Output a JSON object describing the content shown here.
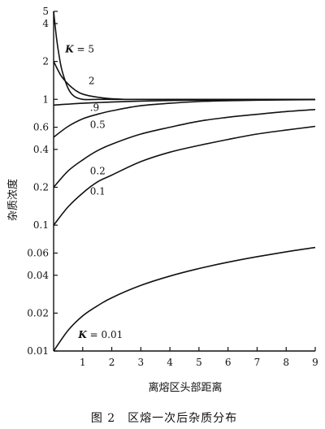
{
  "chart_data": {
    "type": "line",
    "title": "",
    "xlabel": "离熔区头部距离",
    "ylabel": "杂质浓度",
    "caption": "图 2　区熔一次后杂质分布",
    "x_scale": "linear",
    "y_scale": "log",
    "xlim": [
      0,
      9
    ],
    "ylim": [
      0.01,
      5
    ],
    "x_ticks": [
      1,
      2,
      3,
      4,
      5,
      6,
      7,
      8,
      9
    ],
    "y_ticks": [
      0.01,
      0.02,
      0.04,
      0.06,
      0.1,
      0.2,
      0.4,
      0.6,
      1,
      2,
      4,
      5
    ],
    "y_tick_labels": [
      "0.01",
      "0.02",
      "0.04",
      "0.06",
      "0.1",
      "0.2",
      "0.4",
      "0.6",
      "1",
      "2",
      "4",
      "5"
    ],
    "grid": false,
    "series": [
      {
        "name": "K = 5",
        "x": [
          0,
          0.1,
          0.2,
          0.3,
          0.5,
          0.7,
          1.0,
          1.5,
          2.0,
          3.0,
          4.0,
          6.0,
          9.0
        ],
        "values": [
          5,
          3.05,
          2.14,
          1.66,
          1.22,
          1.06,
          1.0,
          1.0,
          1.0,
          1.0,
          1.0,
          1.0,
          1.0
        ]
      },
      {
        "name": "2",
        "x": [
          0,
          0.25,
          0.5,
          0.75,
          1.0,
          1.5,
          2.0,
          2.5,
          3.0,
          4.0,
          6.0,
          9.0
        ],
        "values": [
          2,
          1.55,
          1.32,
          1.18,
          1.1,
          1.04,
          1.01,
          1.0,
          1.0,
          1.0,
          1.0,
          1.0
        ]
      },
      {
        "name": "0.9",
        "x": [
          0,
          0.5,
          1.0,
          1.5,
          2.0,
          3.0,
          4.0,
          5.0,
          6.0,
          7.0,
          8.0,
          9.0
        ],
        "values": [
          0.9,
          0.916,
          0.93,
          0.942,
          0.952,
          0.967,
          0.978,
          0.985,
          0.99,
          0.993,
          0.995,
          0.997
        ]
      },
      {
        "name": "0.5",
        "x": [
          0,
          0.5,
          1.0,
          1.5,
          2.0,
          3.0,
          4.0,
          5.0,
          6.0,
          7.0,
          8.0,
          9.0
        ],
        "values": [
          0.5,
          0.61,
          0.7,
          0.76,
          0.81,
          0.89,
          0.93,
          0.96,
          0.975,
          0.985,
          0.99,
          0.994
        ]
      },
      {
        "name": "0.2",
        "x": [
          0,
          0.5,
          1.0,
          1.5,
          2.0,
          3.0,
          4.0,
          5.0,
          6.0,
          7.0,
          8.0,
          9.0
        ],
        "values": [
          0.2,
          0.27,
          0.33,
          0.39,
          0.44,
          0.53,
          0.6,
          0.67,
          0.72,
          0.76,
          0.8,
          0.83
        ]
      },
      {
        "name": "0.1",
        "x": [
          0,
          0.5,
          1.0,
          1.5,
          2.0,
          3.0,
          4.0,
          5.0,
          6.0,
          7.0,
          8.0,
          9.0
        ],
        "values": [
          0.1,
          0.14,
          0.18,
          0.22,
          0.25,
          0.32,
          0.38,
          0.43,
          0.48,
          0.53,
          0.57,
          0.61
        ]
      },
      {
        "name": "K = 0.01",
        "x": [
          0,
          0.5,
          1.0,
          1.5,
          2.0,
          3.0,
          4.0,
          5.0,
          6.0,
          7.0,
          8.0,
          9.0
        ],
        "values": [
          0.01,
          0.0146,
          0.019,
          0.0228,
          0.0265,
          0.0332,
          0.0394,
          0.0452,
          0.0508,
          0.0562,
          0.0614,
          0.0665
        ]
      }
    ],
    "series_labels": [
      {
        "text": "K = 5",
        "label_x": 0.4,
        "label_y": 2.5
      },
      {
        "text": "2",
        "label_x": 1.2,
        "label_y": 1.4
      },
      {
        "text": ".9",
        "label_x": 1.25,
        "label_y": 0.86
      },
      {
        "text": "0.5",
        "label_x": 1.25,
        "label_y": 0.63
      },
      {
        "text": "0.2",
        "label_x": 1.25,
        "label_y": 0.27
      },
      {
        "text": "0.1",
        "label_x": 1.25,
        "label_y": 0.185
      },
      {
        "text": "K = 0.01",
        "label_x": 0.85,
        "label_y": 0.0135
      }
    ]
  }
}
